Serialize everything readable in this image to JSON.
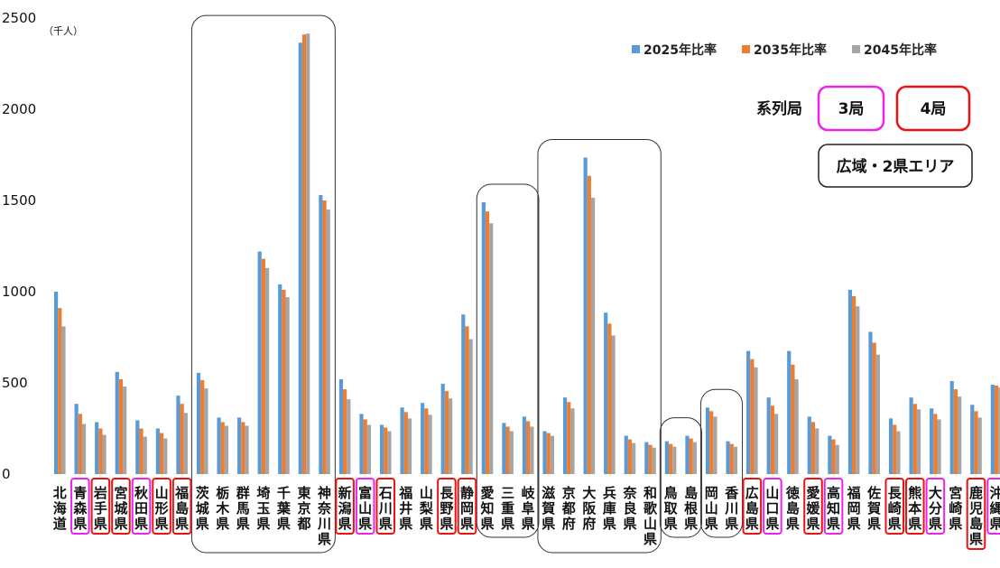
{
  "chart_data": {
    "type": "bar",
    "unit_label": "（千人）",
    "ylim": [
      0,
      2500
    ],
    "yticks": [
      0,
      500,
      1000,
      1500,
      2000,
      2500
    ],
    "categories": [
      "北海道",
      "青森県",
      "岩手県",
      "宮城県",
      "秋田県",
      "山形県",
      "福島県",
      "茨城県",
      "栃木県",
      "群馬県",
      "埼玉県",
      "千葉県",
      "東京都",
      "神奈川県",
      "新潟県",
      "富山県",
      "石川県",
      "福井県",
      "山梨県",
      "長野県",
      "静岡県",
      "愛知県",
      "三重県",
      "岐阜県",
      "滋賀県",
      "京都府",
      "大阪府",
      "兵庫県",
      "奈良県",
      "和歌山県",
      "鳥取県",
      "島根県",
      "岡山県",
      "香川県",
      "広島県",
      "山口県",
      "徳島県",
      "愛媛県",
      "高知県",
      "福岡県",
      "佐賀県",
      "長崎県",
      "熊本県",
      "大分県",
      "宮崎県",
      "鹿児島県",
      "沖縄県"
    ],
    "series": [
      {
        "name": "2025年比率",
        "color": "#5b9bd5",
        "values": [
          1000,
          385,
          285,
          560,
          295,
          250,
          430,
          555,
          310,
          310,
          1220,
          1040,
          2365,
          1530,
          520,
          330,
          270,
          365,
          390,
          495,
          875,
          1490,
          280,
          315,
          235,
          420,
          1735,
          885,
          210,
          175,
          180,
          210,
          365,
          180,
          675,
          420,
          675,
          315,
          210,
          1010,
          780,
          305,
          420,
          360,
          510,
          380,
          490
        ]
      },
      {
        "name": "2035年比率",
        "color": "#ed7d31",
        "values": [
          910,
          330,
          250,
          520,
          250,
          225,
          385,
          515,
          285,
          285,
          1180,
          1010,
          2410,
          1500,
          465,
          300,
          255,
          340,
          360,
          455,
          810,
          1440,
          260,
          290,
          225,
          395,
          1635,
          825,
          190,
          160,
          165,
          195,
          345,
          165,
          630,
          375,
          600,
          285,
          190,
          975,
          720,
          270,
          385,
          330,
          465,
          345,
          485
        ]
      },
      {
        "name": "2045年比率",
        "color": "#a5a5a5",
        "values": [
          810,
          275,
          215,
          480,
          205,
          195,
          335,
          470,
          265,
          265,
          1130,
          970,
          2415,
          1450,
          410,
          270,
          235,
          305,
          325,
          415,
          740,
          1375,
          235,
          260,
          210,
          360,
          1515,
          760,
          170,
          145,
          150,
          175,
          315,
          150,
          585,
          330,
          520,
          250,
          160,
          920,
          655,
          235,
          355,
          300,
          425,
          310,
          475
        ]
      }
    ],
    "legend_position": "top-right",
    "grid": false
  },
  "annotations": {
    "legend_title": "系列局",
    "box_3": "3局",
    "box_4": "4局",
    "box_area": "広域・2県エリア",
    "three_station_prefs": [
      1,
      4,
      15,
      35,
      38,
      43,
      46
    ],
    "four_station_prefs": [
      2,
      3,
      5,
      6,
      14,
      16,
      19,
      20,
      34,
      37,
      41,
      42,
      45
    ],
    "area_groups": [
      [
        7,
        13
      ],
      [
        21,
        23
      ],
      [
        24,
        29
      ],
      [
        30,
        31
      ],
      [
        32,
        33
      ]
    ],
    "color_3": "#ee22ee",
    "color_4": "#ee1111"
  }
}
